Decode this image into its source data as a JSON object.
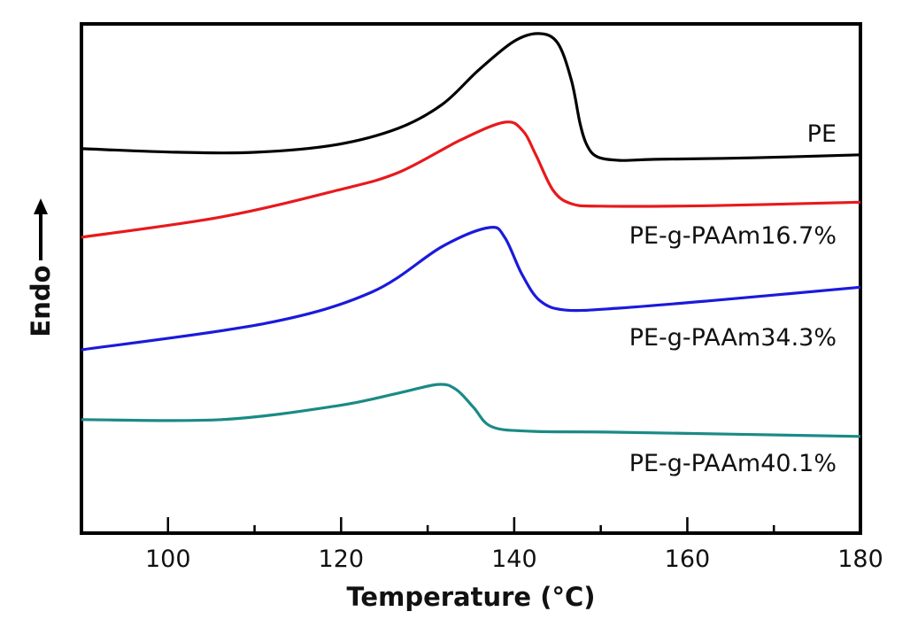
{
  "chart_data": {
    "type": "line",
    "title": "",
    "xlabel": "Temperature (°C)",
    "ylabel": "Endo",
    "ylabel_arrow": "up",
    "xlim": [
      90,
      180
    ],
    "ylim": [
      0,
      100
    ],
    "y_units": "a.u. (heat flow, no ticks shown)",
    "xticks_major": [
      100,
      120,
      140,
      160,
      180
    ],
    "xticks_minor": [
      110,
      130,
      150,
      170
    ],
    "xtick_labels": [
      "100",
      "120",
      "140",
      "160",
      "180"
    ],
    "grid": false,
    "legend": "inline labels at right of each curve",
    "series": [
      {
        "name": "PE",
        "color": "#000000",
        "points": [
          [
            90,
            75.5
          ],
          [
            101,
            74.8
          ],
          [
            110.2,
            74.8
          ],
          [
            119.5,
            76.3
          ],
          [
            126.6,
            79.5
          ],
          [
            131.7,
            84.2
          ],
          [
            135.8,
            90.8
          ],
          [
            139.9,
            96.5
          ],
          [
            142.8,
            98.1
          ],
          [
            145,
            96.3
          ],
          [
            146.6,
            89
          ],
          [
            147.6,
            80.5
          ],
          [
            148.4,
            76.2
          ],
          [
            149.6,
            73.9
          ],
          [
            152.2,
            73.2
          ],
          [
            156.3,
            73.4
          ],
          [
            167.5,
            73.7
          ],
          [
            180,
            74.3
          ]
        ],
        "peak_T": 142.8
      },
      {
        "name": "PE-g-PAAm16.7%",
        "color": "#e8191c",
        "points": [
          [
            90,
            58.1
          ],
          [
            106.2,
            62.1
          ],
          [
            119.5,
            67.3
          ],
          [
            126.6,
            70.8
          ],
          [
            133.8,
            77.2
          ],
          [
            138.9,
            80.7
          ],
          [
            141,
            79
          ],
          [
            142.5,
            74.3
          ],
          [
            144.5,
            67.3
          ],
          [
            146.6,
            64.7
          ],
          [
            150.1,
            64.2
          ],
          [
            162.4,
            64.3
          ],
          [
            180,
            65
          ]
        ],
        "peak_T": 138.9
      },
      {
        "name": "PE-g-PAAm34.3%",
        "color": "#1a1adb",
        "points": [
          [
            90,
            36
          ],
          [
            111.3,
            41.2
          ],
          [
            123.5,
            47.3
          ],
          [
            131.7,
            56.3
          ],
          [
            137.1,
            60
          ],
          [
            138.9,
            58.1
          ],
          [
            140.9,
            50.8
          ],
          [
            143,
            45.6
          ],
          [
            146,
            43.8
          ],
          [
            152.2,
            44.2
          ],
          [
            162.4,
            45.6
          ],
          [
            180,
            48.3
          ]
        ],
        "peak_T": 137.1
      },
      {
        "name": "PE-g-PAAm40.1%",
        "color": "#1a8a86",
        "points": [
          [
            90,
            22.3
          ],
          [
            106.2,
            22.3
          ],
          [
            119.5,
            25
          ],
          [
            126.6,
            27.5
          ],
          [
            131.2,
            29.2
          ],
          [
            133.3,
            28.2
          ],
          [
            135.3,
            24.7
          ],
          [
            137.4,
            20.9
          ],
          [
            142,
            20
          ],
          [
            152.2,
            19.8
          ],
          [
            180,
            19
          ]
        ],
        "peak_T": 131.2
      }
    ],
    "labels": [
      "PE",
      "PE-g-PAAm16.7%",
      "PE-g-PAAm34.3%",
      "PE-g-PAAm40.1%"
    ]
  }
}
